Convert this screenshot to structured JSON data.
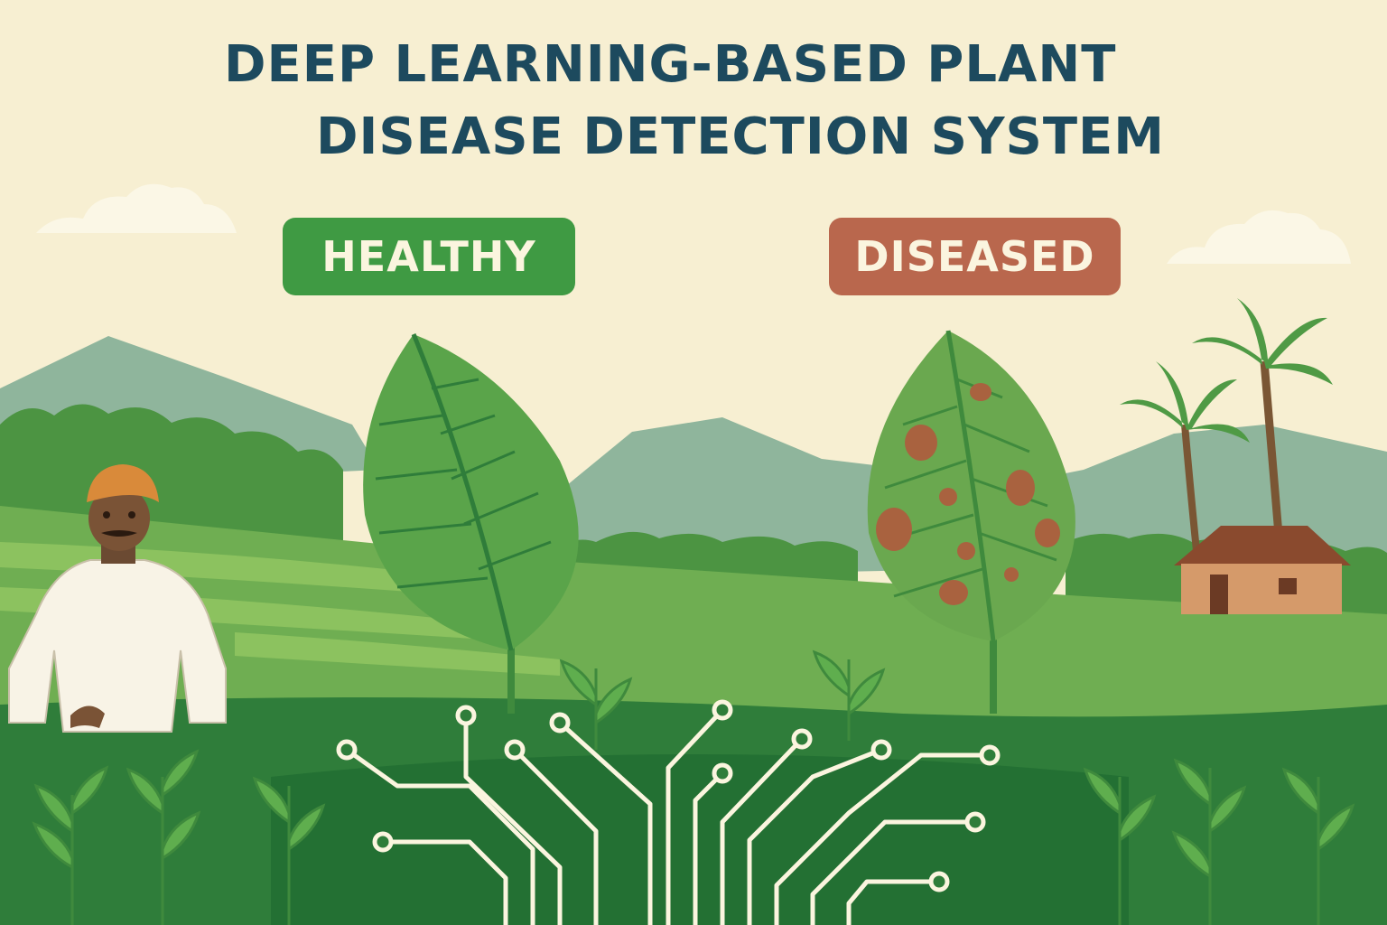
{
  "title": {
    "line1": "DEEP LEARNING-BASED PLANT",
    "line2": "DISEASE DETECTION SYSTEM"
  },
  "labels": {
    "healthy": "HEALTHY",
    "diseased": "DISEASED"
  },
  "colors": {
    "background": "#f7efd2",
    "title": "#1d4a5e",
    "healthy_badge": "#3f9a43",
    "diseased_badge": "#b9674d",
    "leaf": "#5aa44a",
    "spot": "#a9623f",
    "circuit": "#fbf5df"
  },
  "icons": [
    "cloud-icon",
    "mountain-icon",
    "farmer-figure",
    "healthy-leaf-icon",
    "diseased-leaf-icon",
    "palm-tree-icon",
    "house-icon",
    "circuit-icon"
  ]
}
